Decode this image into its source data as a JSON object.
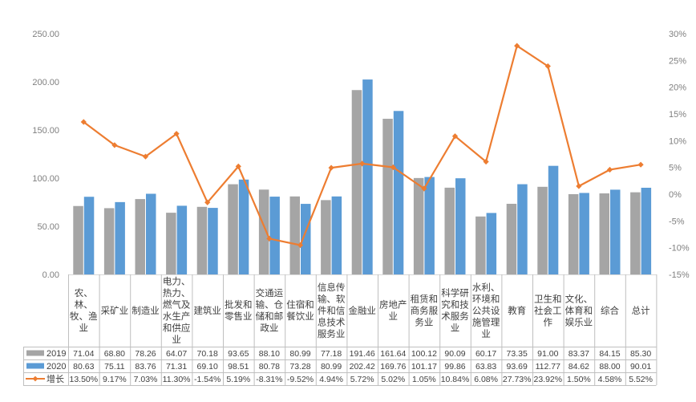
{
  "chart_data": {
    "type": "bar",
    "combo": "bar+line",
    "categories": [
      [
        "农、",
        "林、",
        "牧、渔",
        "业"
      ],
      [
        "采矿业"
      ],
      [
        "制造业"
      ],
      [
        "电力、",
        "热力、",
        "燃气及",
        "水生产",
        "和供应",
        "业"
      ],
      [
        "建筑业"
      ],
      [
        "批发和",
        "零售业"
      ],
      [
        "交通运",
        "输、仓",
        "储和邮",
        "政业"
      ],
      [
        "住宿和",
        "餐饮业"
      ],
      [
        "信息传",
        "输、软",
        "件和信",
        "息技术",
        "服务业"
      ],
      [
        "金融业"
      ],
      [
        "房地产",
        "业"
      ],
      [
        "租赁和",
        "商务服",
        "务业"
      ],
      [
        "科学研",
        "究和技",
        "术服务",
        "业"
      ],
      [
        "水利、",
        "环境和",
        "公共设",
        "施管理",
        "业"
      ],
      [
        "教育"
      ],
      [
        "卫生和",
        "社会工",
        "作"
      ],
      [
        "文化、",
        "体育和",
        "娱乐业"
      ],
      [
        "综合"
      ],
      [
        "总计"
      ]
    ],
    "series": [
      {
        "name": "2019",
        "kind": "bar",
        "axis": "left",
        "color": "#a5a5a5",
        "values": [
          71.04,
          68.8,
          78.26,
          64.07,
          70.18,
          93.65,
          88.1,
          80.99,
          77.18,
          191.46,
          161.64,
          100.12,
          90.09,
          60.17,
          73.35,
          91.0,
          83.37,
          84.15,
          85.3
        ],
        "labels": [
          "71.04",
          "68.80",
          "78.26",
          "64.07",
          "70.18",
          "93.65",
          "88.10",
          "80.99",
          "77.18",
          "191.46",
          "161.64",
          "100.12",
          "90.09",
          "60.17",
          "73.35",
          "91.00",
          "83.37",
          "84.15",
          "85.30"
        ]
      },
      {
        "name": "2020",
        "kind": "bar",
        "axis": "left",
        "color": "#5b9bd5",
        "values": [
          80.63,
          75.11,
          83.76,
          71.31,
          69.1,
          98.51,
          80.78,
          73.28,
          80.99,
          202.42,
          169.76,
          101.17,
          99.86,
          63.83,
          93.69,
          112.77,
          84.62,
          88.0,
          90.01
        ],
        "labels": [
          "80.63",
          "75.11",
          "83.76",
          "71.31",
          "69.10",
          "98.51",
          "80.78",
          "73.28",
          "80.99",
          "202.42",
          "169.76",
          "101.17",
          "99.86",
          "63.83",
          "93.69",
          "112.77",
          "84.62",
          "88.00",
          "90.01"
        ]
      },
      {
        "name": "增长",
        "kind": "line",
        "axis": "right",
        "color": "#ed7d31",
        "values": [
          13.5,
          9.17,
          7.03,
          11.3,
          -1.54,
          5.19,
          -8.31,
          -9.52,
          4.94,
          5.72,
          5.02,
          1.05,
          10.84,
          6.08,
          27.73,
          23.92,
          1.5,
          4.58,
          5.52
        ],
        "labels": [
          "13.50%",
          "9.17%",
          "7.03%",
          "11.30%",
          "-1.54%",
          "5.19%",
          "-8.31%",
          "-9.52%",
          "4.94%",
          "5.72%",
          "5.02%",
          "1.05%",
          "10.84%",
          "6.08%",
          "27.73%",
          "23.92%",
          "1.50%",
          "4.58%",
          "5.52%"
        ]
      }
    ],
    "y_left": {
      "min": 0,
      "max": 250,
      "ticks": [
        "0.00",
        "50.00",
        "100.00",
        "150.00",
        "200.00",
        "250.00"
      ]
    },
    "y_right": {
      "min": -15,
      "max": 30,
      "ticks": [
        "-15%",
        "-10%",
        "-5%",
        "0%",
        "5%",
        "10%",
        "15%",
        "20%",
        "25%",
        "30%"
      ]
    },
    "grid": false,
    "legend": "data-table"
  }
}
